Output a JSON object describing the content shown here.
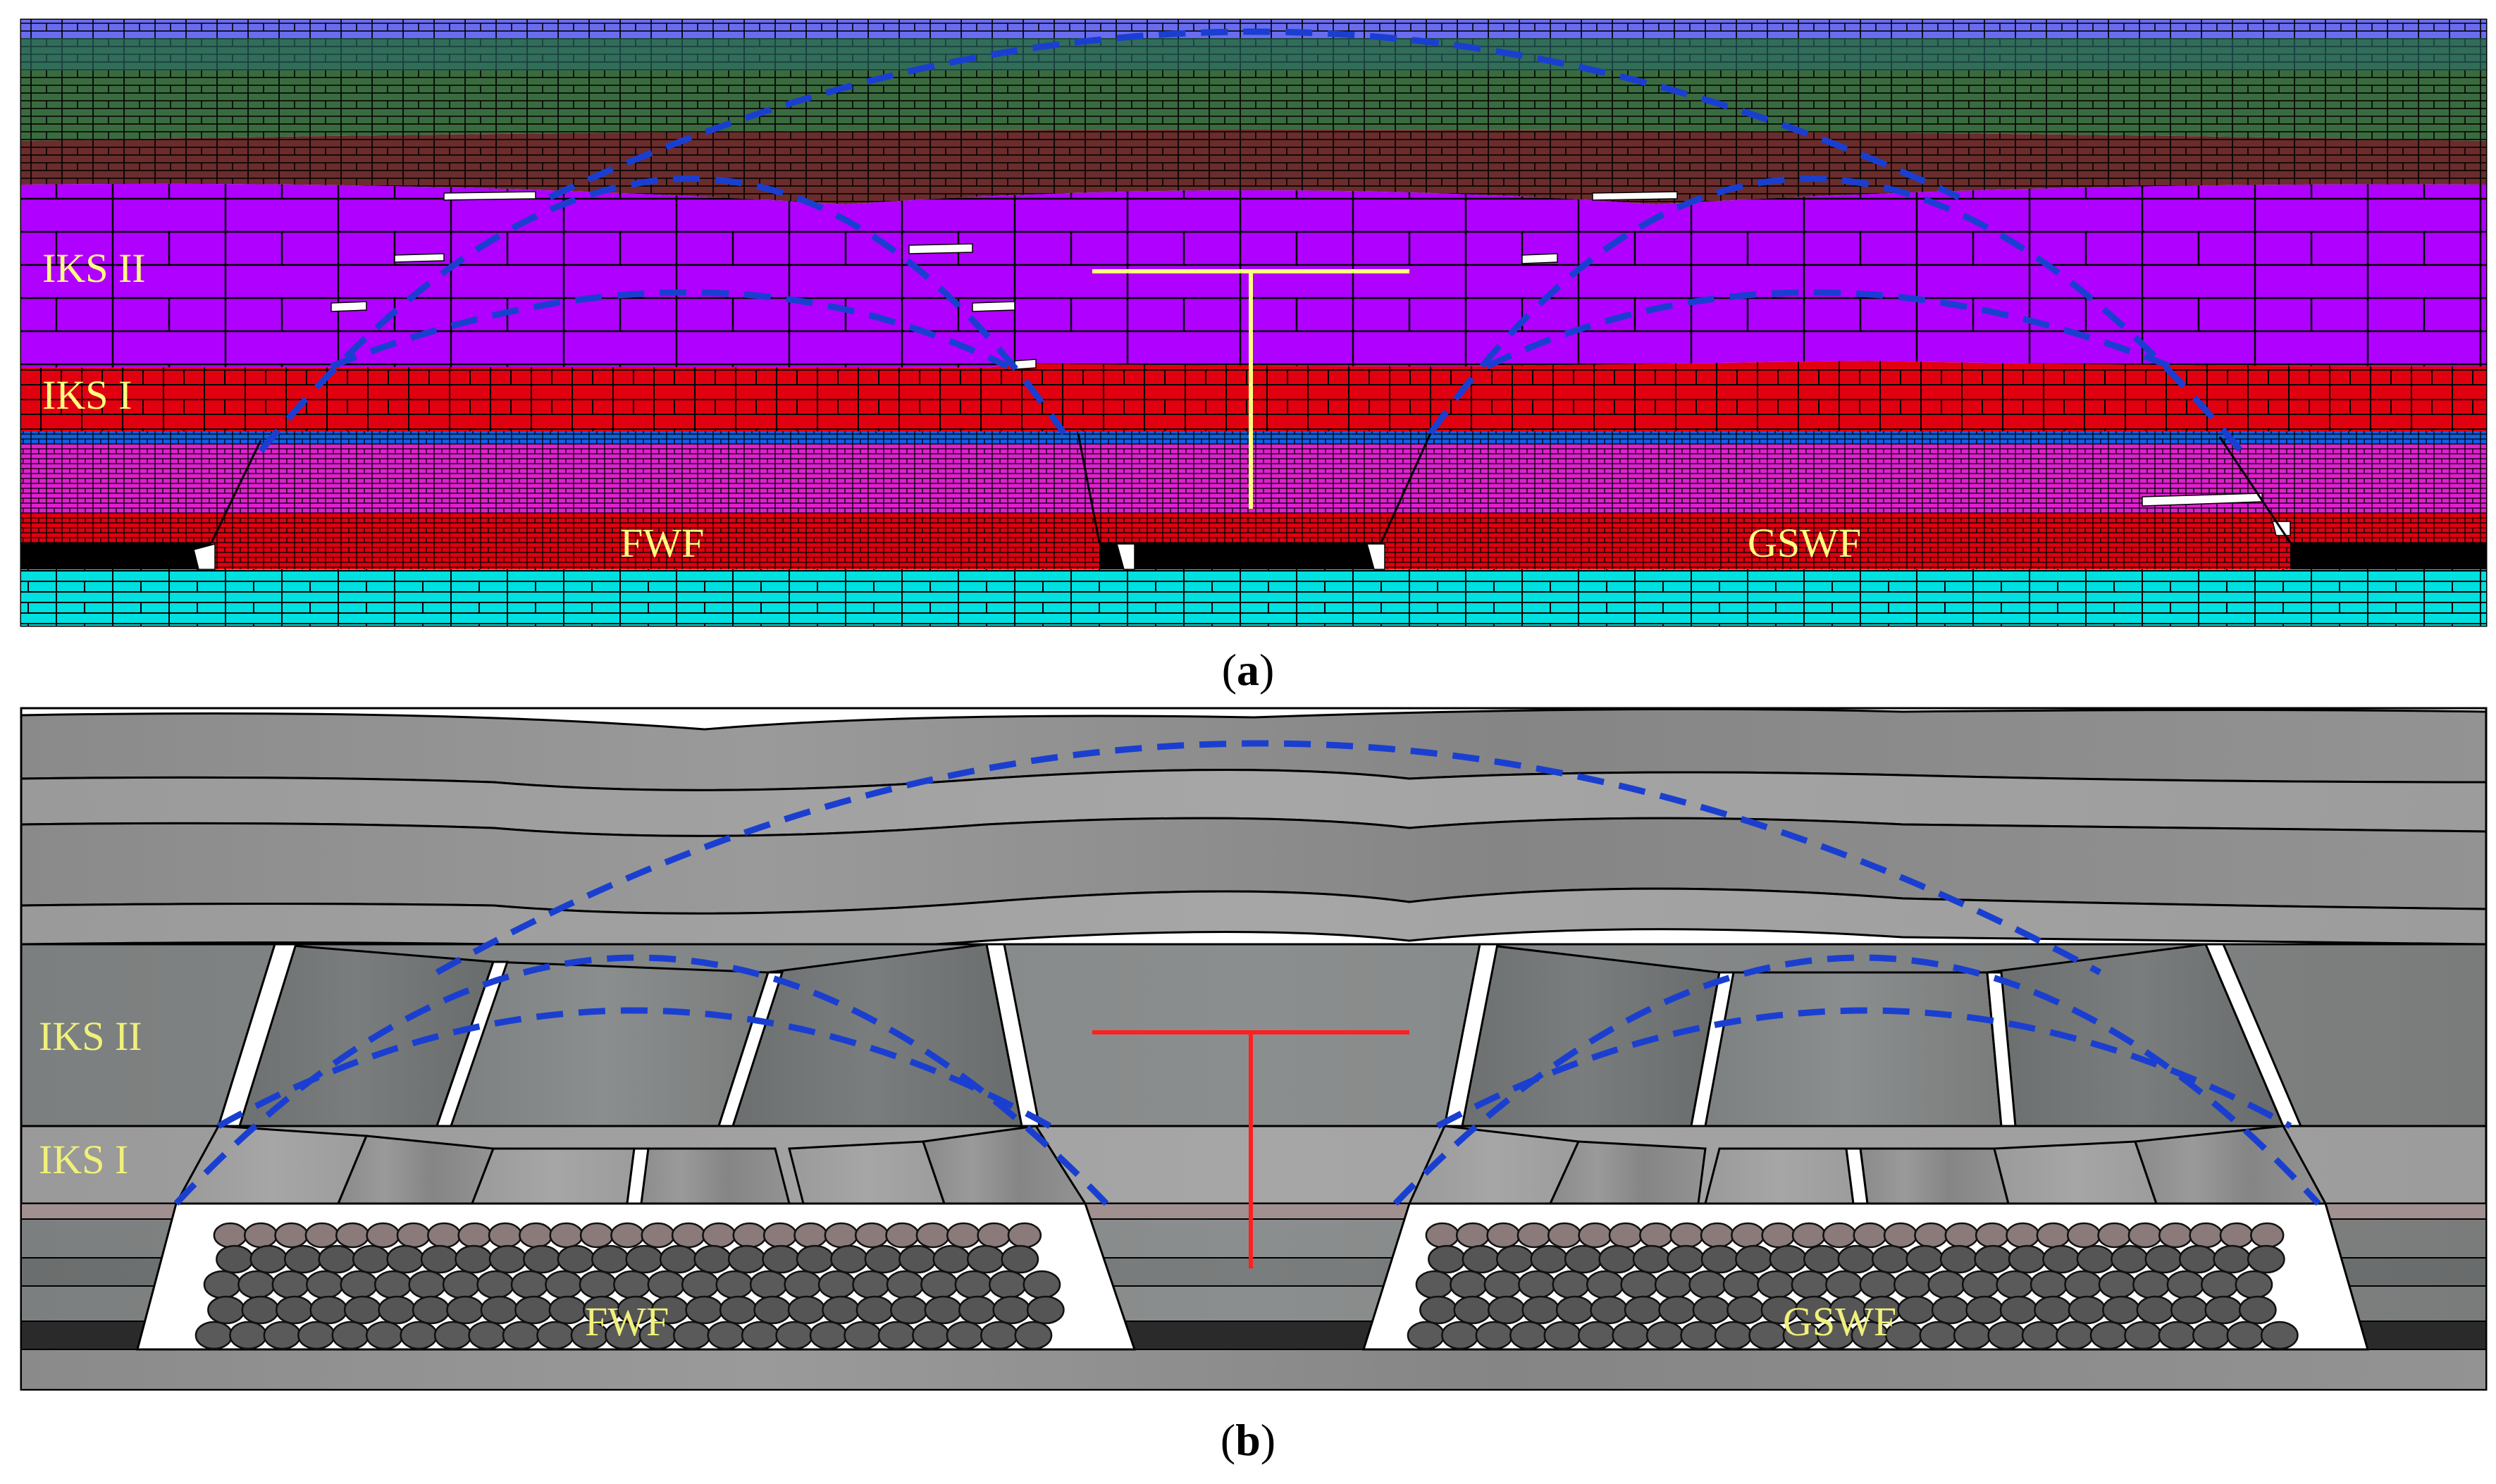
{
  "panel_a": {
    "caption_open": "(",
    "caption_letter": "a",
    "caption_close": ")",
    "labels": {
      "iks2": "IKS II",
      "iks1": "IKS I",
      "fwf": "FWF",
      "gswf": "GSWF"
    },
    "colors": {
      "top_strata": "#6a6cf0",
      "upper_green": "#3a6b3f",
      "brown": "#6b2c2c",
      "purple": "#b000ff",
      "red": "#e00010",
      "magenta": "#e020d0",
      "blue_line": "#1060e0",
      "coal": "#000000",
      "floor": "#00e0e0",
      "marker": "#ffff80",
      "arc": "#1a3fd0"
    }
  },
  "panel_b": {
    "caption_open": "(",
    "caption_letter": "b",
    "caption_close": ")",
    "labels": {
      "iks2": "IKS II",
      "iks1": "IKS I",
      "fwf": "FWF",
      "gswf": "GSWF"
    },
    "colors": {
      "rock": "#8c8c8c",
      "arc": "#1a3fd0",
      "marker": "#ff2020",
      "label": "#f0f07a"
    }
  }
}
